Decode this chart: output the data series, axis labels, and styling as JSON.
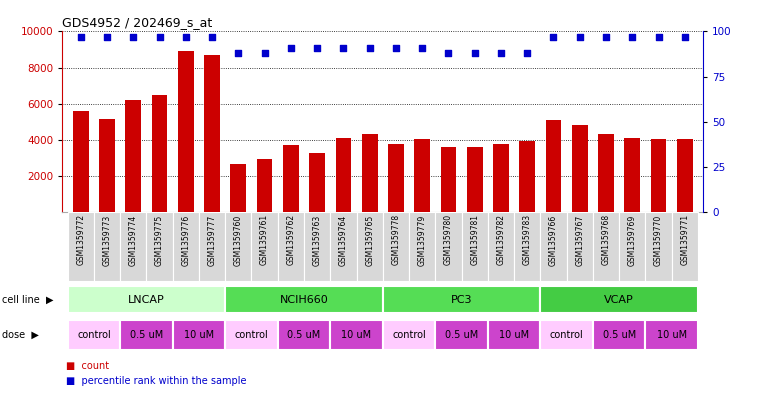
{
  "title": "GDS4952 / 202469_s_at",
  "samples": [
    "GSM1359772",
    "GSM1359773",
    "GSM1359774",
    "GSM1359775",
    "GSM1359776",
    "GSM1359777",
    "GSM1359760",
    "GSM1359761",
    "GSM1359762",
    "GSM1359763",
    "GSM1359764",
    "GSM1359765",
    "GSM1359778",
    "GSM1359779",
    "GSM1359780",
    "GSM1359781",
    "GSM1359782",
    "GSM1359783",
    "GSM1359766",
    "GSM1359767",
    "GSM1359768",
    "GSM1359769",
    "GSM1359770",
    "GSM1359771"
  ],
  "counts": [
    5600,
    5150,
    6200,
    6500,
    8900,
    8700,
    2650,
    2950,
    3700,
    3250,
    4100,
    4350,
    3750,
    4050,
    3600,
    3600,
    3800,
    3950,
    5100,
    4850,
    4350,
    4100,
    4050,
    4050
  ],
  "percentile_ranks": [
    97,
    97,
    97,
    97,
    97,
    97,
    88,
    88,
    91,
    91,
    91,
    91,
    91,
    91,
    88,
    88,
    88,
    88,
    97,
    97,
    97,
    97,
    97,
    97
  ],
  "bar_color": "#cc0000",
  "dot_color": "#0000cc",
  "ylim_left": [
    0,
    10000
  ],
  "ylim_right": [
    0,
    100
  ],
  "yticks_left": [
    2000,
    4000,
    6000,
    8000,
    10000
  ],
  "yticks_right": [
    0,
    25,
    50,
    75,
    100
  ],
  "grid_y_values": [
    2000,
    4000,
    6000,
    8000,
    10000
  ],
  "cell_lines": [
    {
      "label": "LNCAP",
      "start": 0,
      "end": 6,
      "color": "#ccffcc"
    },
    {
      "label": "NCIH660",
      "start": 6,
      "end": 12,
      "color": "#66dd66"
    },
    {
      "label": "PC3",
      "start": 12,
      "end": 18,
      "color": "#66dd66"
    },
    {
      "label": "VCAP",
      "start": 18,
      "end": 24,
      "color": "#55cc55"
    }
  ],
  "doses": [
    {
      "label": "control",
      "start": 0,
      "end": 2
    },
    {
      "label": "0.5 uM",
      "start": 2,
      "end": 4
    },
    {
      "label": "10 uM",
      "start": 4,
      "end": 6
    },
    {
      "label": "control",
      "start": 6,
      "end": 8
    },
    {
      "label": "0.5 uM",
      "start": 8,
      "end": 10
    },
    {
      "label": "10 uM",
      "start": 10,
      "end": 12
    },
    {
      "label": "control",
      "start": 12,
      "end": 14
    },
    {
      "label": "0.5 uM",
      "start": 14,
      "end": 16
    },
    {
      "label": "10 uM",
      "start": 16,
      "end": 18
    },
    {
      "label": "control",
      "start": 18,
      "end": 20
    },
    {
      "label": "0.5 uM",
      "start": 20,
      "end": 22
    },
    {
      "label": "10 uM",
      "start": 22,
      "end": 24
    }
  ],
  "dose_colors": {
    "control": "#ffccff",
    "0.5 uM": "#dd44dd",
    "10 uM": "#dd44dd"
  },
  "legend_count_label": "count",
  "legend_pct_label": "percentile rank within the sample",
  "cell_line_label": "cell line",
  "dose_label": "dose",
  "left_axis_color": "#cc0000",
  "right_axis_color": "#0000cc",
  "plot_bg_color": "#ffffff",
  "xtick_bg": "#d8d8d8"
}
